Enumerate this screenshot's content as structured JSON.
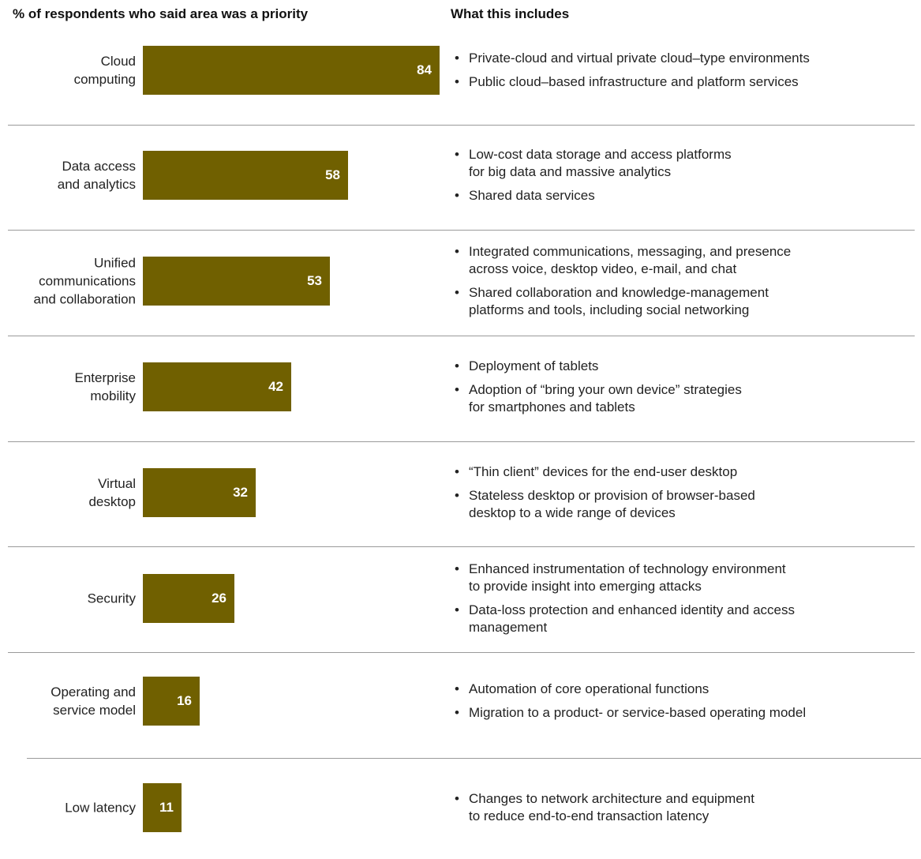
{
  "header": {
    "left": "% of respondents who said area was a priority",
    "right": "What this includes"
  },
  "chart_data": {
    "type": "bar",
    "orientation": "horizontal",
    "title": "% of respondents who said area was a priority",
    "categories": [
      "Cloud computing",
      "Data access and analytics",
      "Unified communications and collaboration",
      "Enterprise mobility",
      "Virtual desktop",
      "Security",
      "Operating and service model",
      "Low latency"
    ],
    "values": [
      84,
      58,
      53,
      42,
      32,
      26,
      16,
      11
    ],
    "bar_color": "#706000",
    "value_label_color": "#ffffff",
    "xlim": [
      0,
      84
    ]
  },
  "rows": [
    {
      "label_lines": [
        "Cloud",
        "computing"
      ],
      "value_label": "84",
      "bullets": [
        [
          "Private-cloud and virtual private cloud–type environments"
        ],
        [
          "Public cloud–based infrastructure and platform services"
        ]
      ]
    },
    {
      "label_lines": [
        "Data access",
        "and analytics"
      ],
      "value_label": "58",
      "bullets": [
        [
          "Low-cost data storage and access platforms",
          "for big data and massive analytics"
        ],
        [
          "Shared data services"
        ]
      ]
    },
    {
      "label_lines": [
        "Unified",
        "communications",
        "and collaboration"
      ],
      "value_label": "53",
      "bullets": [
        [
          "Integrated communications, messaging, and presence",
          "across voice, desktop video, e-mail, and chat"
        ],
        [
          "Shared collaboration and knowledge-management",
          "platforms and tools, including social networking"
        ]
      ]
    },
    {
      "label_lines": [
        "Enterprise",
        "mobility"
      ],
      "value_label": "42",
      "bullets": [
        [
          "Deployment of tablets"
        ],
        [
          "Adoption of “bring your own device” strategies",
          "for smartphones and tablets"
        ]
      ]
    },
    {
      "label_lines": [
        "Virtual",
        "desktop"
      ],
      "value_label": "32",
      "bullets": [
        [
          "“Thin client” devices for the end-user desktop"
        ],
        [
          "Stateless desktop or provision of browser-based",
          "desktop to a wide range of devices"
        ]
      ]
    },
    {
      "label_lines": [
        "Security"
      ],
      "value_label": "26",
      "bullets": [
        [
          "Enhanced instrumentation of technology environment",
          "to provide insight into emerging attacks"
        ],
        [
          "Data-loss protection and enhanced identity and access",
          "management"
        ]
      ]
    },
    {
      "label_lines": [
        "Operating and",
        "service model"
      ],
      "value_label": "16",
      "bullets": [
        [
          "Automation of core operational functions"
        ],
        [
          "Migration to a product- or service-based operating model"
        ]
      ]
    },
    {
      "label_lines": [
        "Low latency"
      ],
      "value_label": "11",
      "bullets": [
        [
          "Changes to network architecture and equipment",
          "to reduce end-to-end transaction latency"
        ]
      ]
    }
  ]
}
